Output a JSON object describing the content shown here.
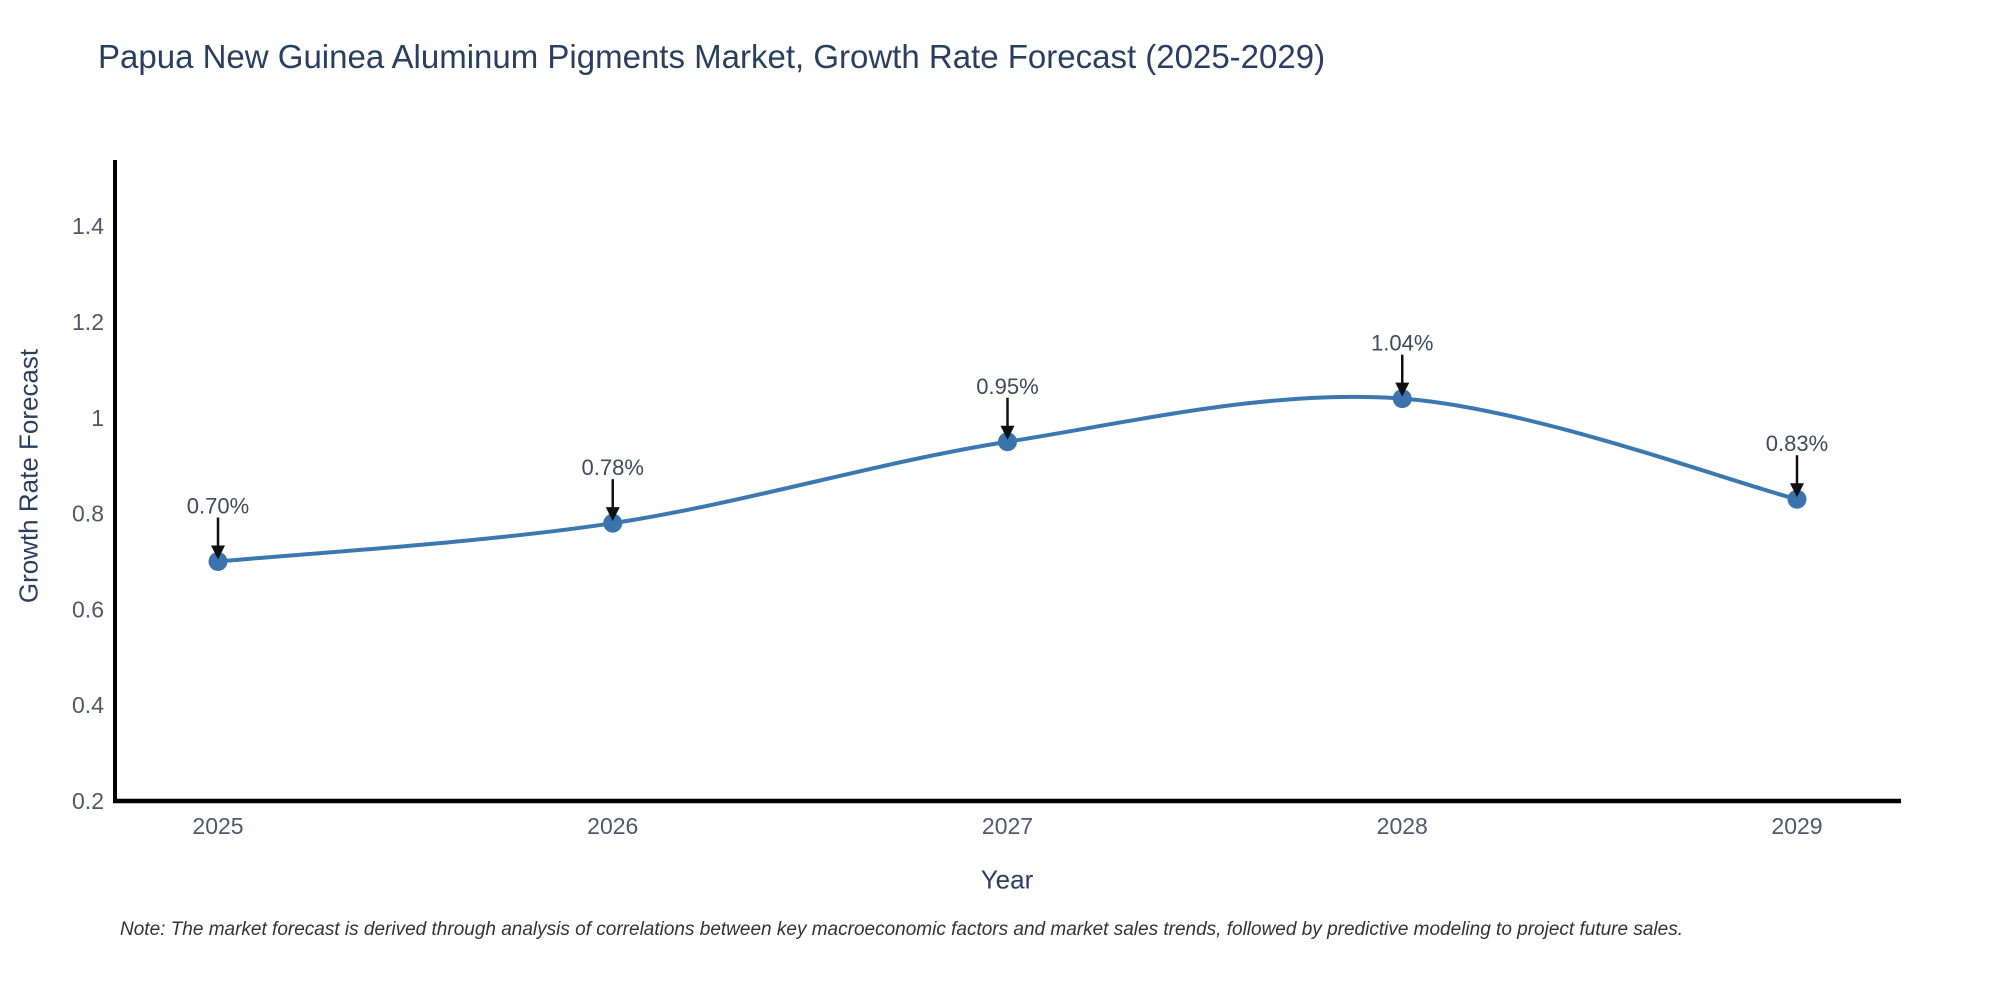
{
  "title": "Papua New Guinea Aluminum Pigments Market, Growth Rate Forecast (2025-2029)",
  "note": "Note: The market forecast is derived through analysis of correlations between key macroeconomic factors and market sales trends, followed by predictive modeling to project future sales.",
  "chart_data": {
    "type": "line",
    "title": "Papua New Guinea Aluminum Pigments Market, Growth Rate Forecast (2025-2029)",
    "xlabel": "Year",
    "ylabel": "Growth Rate Forecast",
    "categories": [
      "2025",
      "2026",
      "2027",
      "2028",
      "2029"
    ],
    "values": [
      0.7,
      0.78,
      0.95,
      1.04,
      0.83
    ],
    "point_labels": [
      "0.70%",
      "0.78%",
      "0.95%",
      "1.04%",
      "0.83%"
    ],
    "ytick_labels": [
      "0.2",
      "0.4",
      "0.6",
      "0.8",
      "1",
      "1.2",
      "1.4"
    ],
    "ytick_values": [
      0.2,
      0.4,
      0.6,
      0.8,
      1.0,
      1.2,
      1.4
    ],
    "ylim": [
      0.2,
      1.53
    ],
    "line_shape": "spline",
    "grid": false,
    "legend_position": "none"
  },
  "colors": {
    "line": "#3c78b0",
    "marker": "#3a74ac",
    "arrow": "#111111",
    "axis_line": "#000000",
    "title_text": "#2a3f5f",
    "tick_text": "#4f586a",
    "annotation_text": "#3f4a5a",
    "note_text": "#333333",
    "background": "#ffffff"
  }
}
